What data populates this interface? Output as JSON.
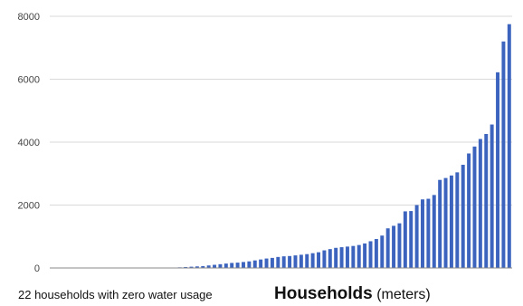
{
  "chart_data": {
    "type": "bar",
    "annotation": "22 households with zero water usage",
    "xlabel_main": "Households",
    "xlabel_unit": "(meters)",
    "ylim": [
      0,
      8000
    ],
    "yticks": [
      0,
      2000,
      4000,
      6000,
      8000
    ],
    "grid": true,
    "legend": "none",
    "series_color": "#3c64be",
    "values": [
      0,
      0,
      0,
      0,
      0,
      0,
      0,
      0,
      0,
      0,
      0,
      0,
      0,
      0,
      0,
      0,
      0,
      0,
      0,
      0,
      0,
      0,
      20,
      30,
      40,
      50,
      60,
      80,
      100,
      120,
      140,
      160,
      170,
      190,
      210,
      240,
      270,
      300,
      320,
      350,
      370,
      380,
      400,
      420,
      440,
      470,
      500,
      560,
      600,
      640,
      660,
      680,
      700,
      730,
      780,
      850,
      920,
      1030,
      1260,
      1340,
      1420,
      1800,
      1810,
      2000,
      2180,
      2200,
      2320,
      2800,
      2860,
      2940,
      3040,
      3280,
      3640,
      3860,
      4100,
      4260,
      4560,
      6220,
      7200,
      7750
    ]
  }
}
